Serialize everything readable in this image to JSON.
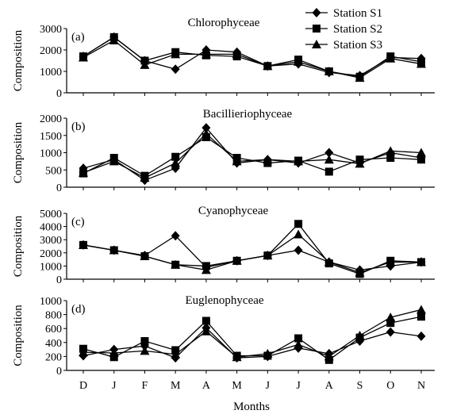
{
  "chart_data": {
    "type": "line",
    "xlabel": "Months",
    "categories": [
      "D",
      "J",
      "F",
      "M",
      "A",
      "M",
      "J",
      "J",
      "A",
      "S",
      "O",
      "N"
    ],
    "legend": {
      "placement": "top-right",
      "entries": [
        {
          "name": "Station S1",
          "marker": "diamond"
        },
        {
          "name": "Station S2",
          "marker": "square"
        },
        {
          "name": "Station S3",
          "marker": "triangle"
        }
      ]
    },
    "panels": [
      {
        "label": "(a)",
        "title": "Chlorophyceae",
        "ylabel": "Composition",
        "ylim": [
          0,
          3000
        ],
        "yticks": [
          0,
          1000,
          2000,
          3000
        ],
        "series": [
          {
            "name": "Station S1",
            "values": [
              1700,
              2600,
              1500,
              1100,
              2000,
              1900,
              1250,
              1350,
              950,
              800,
              1650,
              1600
            ]
          },
          {
            "name": "Station S2",
            "values": [
              1700,
              2600,
              1500,
              1900,
              1750,
              1700,
              1250,
              1550,
              1000,
              750,
              1700,
              1450
            ]
          },
          {
            "name": "Station S3",
            "values": [
              1650,
              2450,
              1300,
              1800,
              1800,
              1800,
              1250,
              1450,
              1000,
              700,
              1600,
              1350
            ]
          }
        ]
      },
      {
        "label": "(b)",
        "title": "Bacillieriophyceae",
        "ylabel": "Composition",
        "ylim": [
          0,
          2000
        ],
        "yticks": [
          0,
          500,
          1000,
          1500,
          2000
        ],
        "series": [
          {
            "name": "Station S1",
            "values": [
              550,
              800,
              200,
              550,
              1720,
              700,
              800,
              700,
              1000,
              700,
              1000,
              850
            ]
          },
          {
            "name": "Station S2",
            "values": [
              400,
              850,
              330,
              880,
              1450,
              850,
              700,
              770,
              450,
              800,
              850,
              800
            ]
          },
          {
            "name": "Station S3",
            "values": [
              420,
              750,
              270,
              700,
              1550,
              750,
              800,
              750,
              800,
              680,
              1050,
              1000
            ]
          }
        ]
      },
      {
        "label": "(c)",
        "title": "Cyanophyceae",
        "ylabel": "Composition",
        "ylim": [
          0,
          5000
        ],
        "yticks": [
          0,
          1000,
          2000,
          3000,
          4000,
          5000
        ],
        "series": [
          {
            "name": "Station S1",
            "values": [
              2600,
              2200,
              1800,
              3300,
              900,
              1400,
              1800,
              2200,
              1300,
              700,
              1000,
              1300
            ]
          },
          {
            "name": "Station S2",
            "values": [
              2600,
              2200,
              1750,
              1100,
              1000,
              1400,
              1800,
              4200,
              1200,
              400,
              1400,
              1300
            ]
          },
          {
            "name": "Station S3",
            "values": [
              2600,
              2200,
              1750,
              1100,
              700,
              1400,
              1800,
              3400,
              1300,
              500,
              1300,
              1300
            ]
          }
        ]
      },
      {
        "label": "(d)",
        "title": "Euglenophyceae",
        "ylabel": "Composition",
        "ylim": [
          0,
          1000
        ],
        "yticks": [
          0,
          200,
          400,
          600,
          800,
          1000
        ],
        "series": [
          {
            "name": "Station S1",
            "values": [
              210,
              300,
              350,
              180,
              610,
              180,
              200,
              320,
              240,
              420,
              550,
              490
            ]
          },
          {
            "name": "Station S2",
            "values": [
              310,
              190,
              420,
              290,
              710,
              210,
              210,
              460,
              150,
              470,
              680,
              770
            ]
          },
          {
            "name": "Station S3",
            "values": [
              260,
              250,
              280,
              230,
              560,
              190,
              240,
              370,
              200,
              500,
              760,
              870
            ]
          }
        ]
      }
    ]
  }
}
